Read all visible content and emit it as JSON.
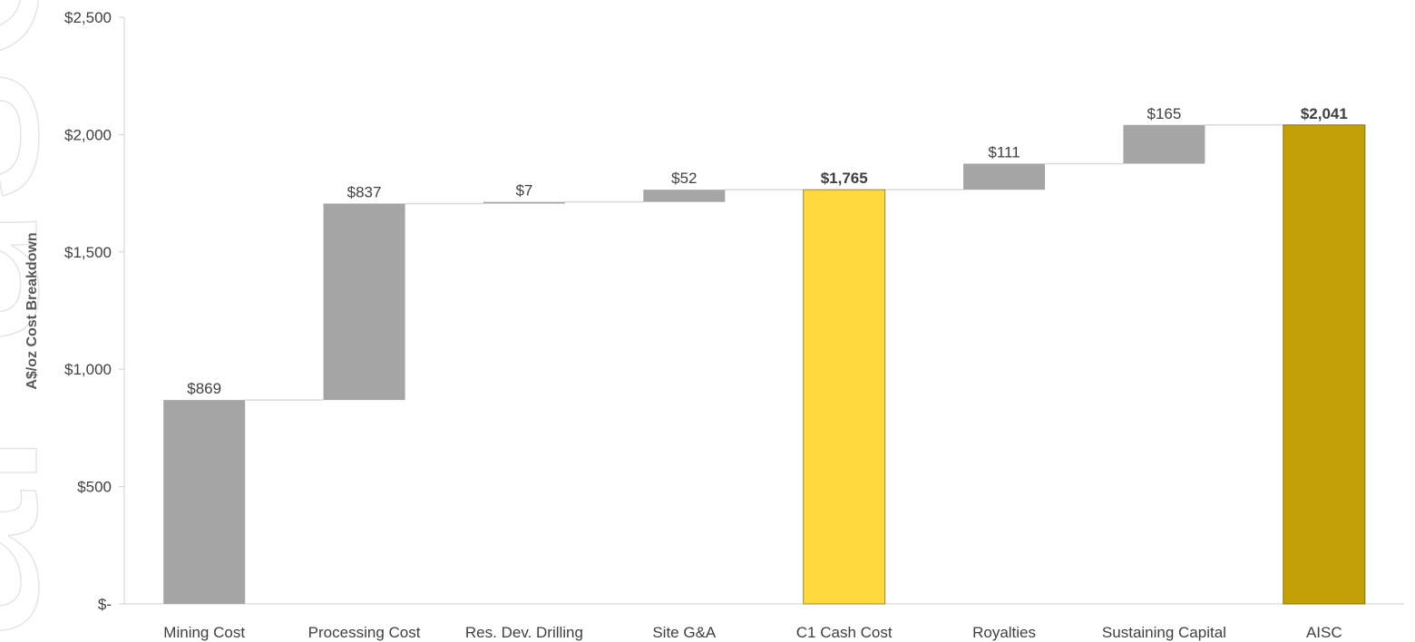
{
  "watermark": "al use onl",
  "chart_data": {
    "type": "waterfall",
    "title": "",
    "xlabel": "",
    "ylabel": "A$/oz Cost Breakdown",
    "ylim": [
      0,
      2500
    ],
    "yticks": [
      0,
      500,
      1000,
      1500,
      2000,
      2500
    ],
    "ytick_labels": [
      "$-",
      "$500",
      "$1,000",
      "$1,500",
      "$2,000",
      "$2,500"
    ],
    "grid": false,
    "categories": [
      "Mining Cost",
      "Processing Cost",
      "Res. Dev. Drilling",
      "Site G&A",
      "C1 Cash Cost",
      "Royalties",
      "Sustaining Capital",
      "AISC"
    ],
    "values": [
      869,
      837,
      7,
      52,
      1765,
      111,
      165,
      2041
    ],
    "labels": [
      "$869",
      "$837",
      "$7",
      "$52",
      "$1,765",
      "$111",
      "$165",
      "$2,041"
    ],
    "kinds": [
      "increment",
      "increment",
      "increment",
      "increment",
      "total",
      "increment",
      "increment",
      "total"
    ],
    "colors": {
      "increment": "#a5a5a5",
      "c1_total": "#ffd93d",
      "aisc_total": "#c3a005",
      "connector": "#d9d9d9",
      "axis": "#d0d0d0"
    }
  }
}
